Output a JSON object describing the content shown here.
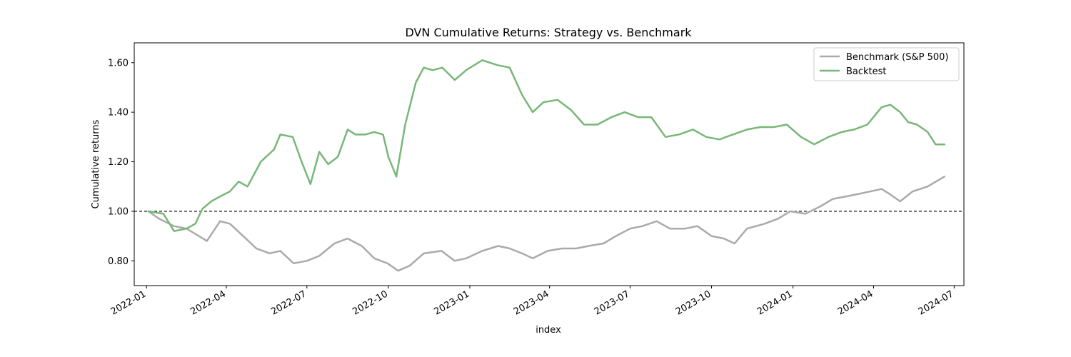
{
  "chart_data": {
    "type": "line",
    "title": "DVN Cumulative Returns: Strategy vs. Benchmark",
    "xlabel": "index",
    "ylabel": "Cumulative returns",
    "x_ticks": [
      "2022-01",
      "2022-04",
      "2022-07",
      "2022-10",
      "2023-01",
      "2023-04",
      "2023-07",
      "2023-10",
      "2024-01",
      "2024-04",
      "2024-07"
    ],
    "y_ticks": [
      "0.80",
      "1.00",
      "1.20",
      "1.40",
      "1.60"
    ],
    "ylim": [
      0.7,
      1.68
    ],
    "xlim": [
      "2021-12-18",
      "2024-07-12"
    ],
    "reference_line": 1.0,
    "legend_position": "top-right",
    "grid": false,
    "series": [
      {
        "name": "Benchmark (S&P 500)",
        "color": "#aaaaaa",
        "x": [
          "2022-01-03",
          "2022-01-15",
          "2022-02-01",
          "2022-02-15",
          "2022-03-01",
          "2022-03-10",
          "2022-03-25",
          "2022-04-05",
          "2022-04-20",
          "2022-05-05",
          "2022-05-20",
          "2022-06-01",
          "2022-06-16",
          "2022-07-01",
          "2022-07-15",
          "2022-08-01",
          "2022-08-16",
          "2022-09-01",
          "2022-09-15",
          "2022-09-30",
          "2022-10-12",
          "2022-10-25",
          "2022-11-10",
          "2022-11-30",
          "2022-12-15",
          "2022-12-28",
          "2023-01-15",
          "2023-02-02",
          "2023-02-15",
          "2023-03-01",
          "2023-03-13",
          "2023-03-30",
          "2023-04-15",
          "2023-05-01",
          "2023-05-15",
          "2023-06-01",
          "2023-06-15",
          "2023-07-01",
          "2023-07-15",
          "2023-07-31",
          "2023-08-15",
          "2023-09-01",
          "2023-09-15",
          "2023-10-01",
          "2023-10-15",
          "2023-10-27",
          "2023-11-10",
          "2023-11-30",
          "2023-12-15",
          "2023-12-29",
          "2024-01-15",
          "2024-02-01",
          "2024-02-15",
          "2024-03-01",
          "2024-03-15",
          "2024-03-28",
          "2024-04-10",
          "2024-04-19",
          "2024-05-01",
          "2024-05-15",
          "2024-06-01",
          "2024-06-20"
        ],
        "values": [
          1.0,
          0.97,
          0.94,
          0.93,
          0.9,
          0.88,
          0.96,
          0.95,
          0.9,
          0.85,
          0.83,
          0.84,
          0.79,
          0.8,
          0.82,
          0.87,
          0.89,
          0.86,
          0.81,
          0.79,
          0.76,
          0.78,
          0.83,
          0.84,
          0.8,
          0.81,
          0.84,
          0.86,
          0.85,
          0.83,
          0.81,
          0.84,
          0.85,
          0.85,
          0.86,
          0.87,
          0.9,
          0.93,
          0.94,
          0.96,
          0.93,
          0.93,
          0.94,
          0.9,
          0.89,
          0.87,
          0.93,
          0.95,
          0.97,
          1.0,
          0.99,
          1.02,
          1.05,
          1.06,
          1.07,
          1.08,
          1.09,
          1.07,
          1.04,
          1.08,
          1.1,
          1.14
        ]
      },
      {
        "name": "Backtest",
        "color": "#77b777",
        "x": [
          "2022-01-03",
          "2022-01-20",
          "2022-02-01",
          "2022-02-15",
          "2022-02-25",
          "2022-03-05",
          "2022-03-15",
          "2022-03-25",
          "2022-04-05",
          "2022-04-15",
          "2022-04-25",
          "2022-05-10",
          "2022-05-25",
          "2022-06-01",
          "2022-06-15",
          "2022-06-25",
          "2022-07-05",
          "2022-07-15",
          "2022-07-25",
          "2022-08-05",
          "2022-08-16",
          "2022-08-25",
          "2022-09-05",
          "2022-09-15",
          "2022-09-25",
          "2022-10-01",
          "2022-10-10",
          "2022-10-20",
          "2022-11-01",
          "2022-11-10",
          "2022-11-20",
          "2022-12-01",
          "2022-12-15",
          "2022-12-28",
          "2023-01-15",
          "2023-02-01",
          "2023-02-15",
          "2023-03-01",
          "2023-03-13",
          "2023-03-25",
          "2023-04-10",
          "2023-04-25",
          "2023-05-10",
          "2023-05-25",
          "2023-06-10",
          "2023-06-25",
          "2023-07-10",
          "2023-07-25",
          "2023-08-10",
          "2023-08-25",
          "2023-09-10",
          "2023-09-25",
          "2023-10-10",
          "2023-10-25",
          "2023-11-10",
          "2023-11-25",
          "2023-12-10",
          "2023-12-25",
          "2024-01-10",
          "2024-01-25",
          "2024-02-10",
          "2024-02-25",
          "2024-03-10",
          "2024-03-25",
          "2024-04-10",
          "2024-04-20",
          "2024-05-01",
          "2024-05-10",
          "2024-05-20",
          "2024-06-01",
          "2024-06-10",
          "2024-06-20"
        ],
        "values": [
          1.0,
          0.99,
          0.92,
          0.93,
          0.95,
          1.01,
          1.04,
          1.06,
          1.08,
          1.12,
          1.1,
          1.2,
          1.25,
          1.31,
          1.3,
          1.2,
          1.11,
          1.24,
          1.19,
          1.22,
          1.33,
          1.31,
          1.31,
          1.32,
          1.31,
          1.22,
          1.14,
          1.35,
          1.52,
          1.58,
          1.57,
          1.58,
          1.53,
          1.57,
          1.61,
          1.59,
          1.58,
          1.47,
          1.4,
          1.44,
          1.45,
          1.41,
          1.35,
          1.35,
          1.38,
          1.4,
          1.38,
          1.38,
          1.3,
          1.31,
          1.33,
          1.3,
          1.29,
          1.31,
          1.33,
          1.34,
          1.34,
          1.35,
          1.3,
          1.27,
          1.3,
          1.32,
          1.33,
          1.35,
          1.42,
          1.43,
          1.4,
          1.36,
          1.35,
          1.32,
          1.27,
          1.27
        ]
      }
    ]
  }
}
